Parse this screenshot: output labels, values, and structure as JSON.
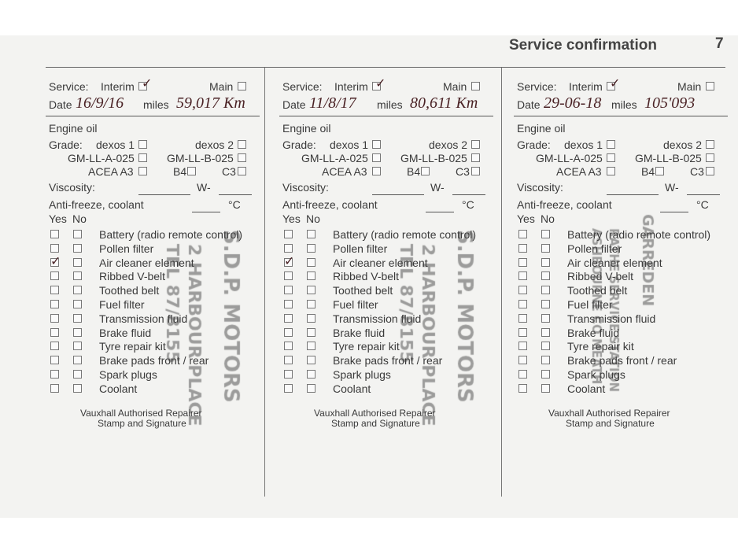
{
  "header": {
    "title": "Service confirmation",
    "page_number": "7"
  },
  "labels": {
    "service": "Service:",
    "interim": "Interim",
    "main": "Main",
    "date": "Date",
    "miles": "miles",
    "engine_oil": "Engine oil",
    "grade": "Grade:",
    "dexos1": "dexos 1",
    "dexos2": "dexos 2",
    "gmlla": "GM-LL-A-025",
    "gmllb": "GM-LL-B-025",
    "acea": "ACEA A3",
    "b4": "B4",
    "c3": "C3",
    "viscosity": "Viscosity:",
    "w": "W-",
    "antifreeze": "Anti-freeze, coolant",
    "celsius": "°C",
    "yes": "Yes",
    "no": "No",
    "footer1": "Vauxhall Authorised Repairer",
    "footer2": "Stamp and Signature"
  },
  "items": [
    "Battery (radio remote control)",
    "Pollen filter",
    "Air cleaner element",
    "Ribbed V-belt",
    "Toothed belt",
    "Fuel filter",
    "Transmission fluid",
    "Brake fluid",
    "Tyre repair kit",
    "Brake pads front / rear",
    "Spark plugs",
    "Coolant"
  ],
  "services": [
    {
      "interim_checked": true,
      "main_checked": false,
      "date": "16/9/16",
      "miles": "59,017 Km",
      "yes_checked": [
        "Air cleaner element"
      ],
      "stamp": [
        "S.D.P. MOTORS",
        "2 HARBOUR PLACE",
        "TEL 87/8155"
      ]
    },
    {
      "interim_checked": true,
      "main_checked": false,
      "date": "11/8/17",
      "miles": "80,611 Km",
      "yes_checked": [
        "Air cleaner element"
      ],
      "stamp": [
        "S.D.P. MOTORS",
        "2 HARBOUR PLACE",
        "TEL 87/8155"
      ]
    },
    {
      "interim_checked": true,
      "main_checked": false,
      "date": "29-06-18",
      "miles": "105'093",
      "yes_checked": [],
      "stamp": [
        "GARREDEN",
        "RATHE SERVICE STATION",
        "ASHBOURNE CO MEATH"
      ]
    }
  ]
}
